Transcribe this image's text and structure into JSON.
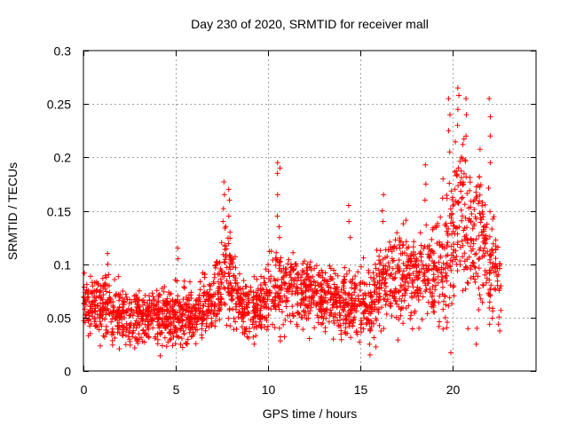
{
  "chart_data": {
    "type": "scatter",
    "title": "Day 230 of 2020, SRMTID for receiver mall",
    "xlabel": "GPS time / hours",
    "ylabel": "SRMTID / TECUs",
    "xlim": [
      0,
      24.5
    ],
    "ylim": [
      0,
      0.3
    ],
    "x_ticks": [
      0,
      5,
      10,
      15,
      20
    ],
    "x_tick_labels": [
      "0",
      "5",
      "10",
      "15",
      "20"
    ],
    "y_ticks": [
      0,
      0.05,
      0.1,
      0.15,
      0.2,
      0.25,
      0.3
    ],
    "y_tick_labels": [
      "0",
      "0.05",
      "0.1",
      "0.15",
      "0.2",
      "0.25",
      "0.3"
    ],
    "grid": true,
    "marker": "+",
    "color": "#ff0000",
    "series": [
      {
        "name": "SRMTID",
        "x_range": [
          0,
          22.6
        ],
        "profile": [
          {
            "x": 0.0,
            "y": 0.06,
            "spread": 0.018
          },
          {
            "x": 1.0,
            "y": 0.065,
            "spread": 0.02
          },
          {
            "x": 2.0,
            "y": 0.05,
            "spread": 0.018
          },
          {
            "x": 3.0,
            "y": 0.048,
            "spread": 0.016
          },
          {
            "x": 4.0,
            "y": 0.055,
            "spread": 0.018
          },
          {
            "x": 5.0,
            "y": 0.05,
            "spread": 0.018
          },
          {
            "x": 6.0,
            "y": 0.052,
            "spread": 0.018
          },
          {
            "x": 7.0,
            "y": 0.065,
            "spread": 0.02
          },
          {
            "x": 7.8,
            "y": 0.095,
            "spread": 0.03
          },
          {
            "x": 8.5,
            "y": 0.06,
            "spread": 0.018
          },
          {
            "x": 9.5,
            "y": 0.058,
            "spread": 0.018
          },
          {
            "x": 10.5,
            "y": 0.075,
            "spread": 0.025
          },
          {
            "x": 11.5,
            "y": 0.08,
            "spread": 0.022
          },
          {
            "x": 12.5,
            "y": 0.07,
            "spread": 0.02
          },
          {
            "x": 13.5,
            "y": 0.068,
            "spread": 0.02
          },
          {
            "x": 14.5,
            "y": 0.06,
            "spread": 0.02
          },
          {
            "x": 15.5,
            "y": 0.065,
            "spread": 0.022
          },
          {
            "x": 16.5,
            "y": 0.085,
            "spread": 0.025
          },
          {
            "x": 17.5,
            "y": 0.09,
            "spread": 0.028
          },
          {
            "x": 18.5,
            "y": 0.085,
            "spread": 0.025
          },
          {
            "x": 19.5,
            "y": 0.1,
            "spread": 0.04
          },
          {
            "x": 20.3,
            "y": 0.15,
            "spread": 0.055
          },
          {
            "x": 21.0,
            "y": 0.12,
            "spread": 0.045
          },
          {
            "x": 21.8,
            "y": 0.11,
            "spread": 0.04
          },
          {
            "x": 22.6,
            "y": 0.08,
            "spread": 0.02
          }
        ],
        "spikes": [
          {
            "x": 7.6,
            "values": [
              0.177,
              0.165,
              0.152,
              0.14
            ]
          },
          {
            "x": 7.9,
            "values": [
              0.17,
              0.16,
              0.145,
              0.13
            ]
          },
          {
            "x": 10.5,
            "values": [
              0.195,
              0.185,
              0.165,
              0.145
            ]
          },
          {
            "x": 10.6,
            "values": [
              0.19,
              0.135,
              0.125
            ]
          },
          {
            "x": 14.4,
            "values": [
              0.155,
              0.14,
              0.125
            ]
          },
          {
            "x": 16.2,
            "values": [
              0.165,
              0.15,
              0.14
            ]
          },
          {
            "x": 18.5,
            "values": [
              0.193,
              0.175,
              0.16
            ]
          },
          {
            "x": 19.8,
            "values": [
              0.255,
              0.24,
              0.225,
              0.205
            ]
          },
          {
            "x": 20.3,
            "values": [
              0.265,
              0.258,
              0.245,
              0.23
            ]
          },
          {
            "x": 20.7,
            "values": [
              0.255,
              0.24,
              0.22
            ]
          },
          {
            "x": 22.0,
            "values": [
              0.255,
              0.238,
              0.22,
              0.195
            ]
          },
          {
            "x": 21.3,
            "values": [
              0.04,
              0.025
            ]
          },
          {
            "x": 15.5,
            "values": [
              0.015,
              0.025
            ]
          },
          {
            "x": 5.1,
            "values": [
              0.115,
              0.105
            ]
          },
          {
            "x": 1.3,
            "values": [
              0.11,
              0.1
            ]
          }
        ],
        "sample_count": 2400
      }
    ]
  }
}
